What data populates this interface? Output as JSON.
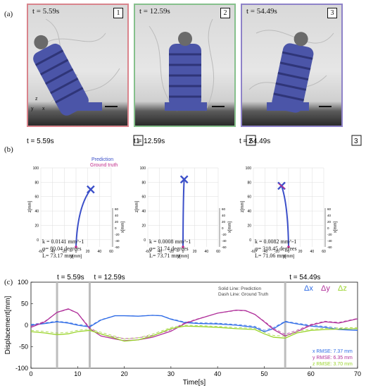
{
  "panel_labels": {
    "a": "(a)",
    "b": "(b)",
    "c": "(c)"
  },
  "photos": [
    {
      "time": "t = 5.59s",
      "number": "1",
      "border_color": "#d9848c"
    },
    {
      "time": "t = 12.59s",
      "number": "2",
      "border_color": "#86c08c"
    },
    {
      "time": "t = 54.49s",
      "number": "3",
      "border_color": "#8e82c8"
    }
  ],
  "photo_axes": {
    "z": "z",
    "x": "x",
    "y": "y"
  },
  "shapes": {
    "legend": {
      "prediction": "Prediction",
      "ground_truth": "Ground truth",
      "prediction_color": "#3b4fc9",
      "ground_truth_color": "#c02c8a"
    },
    "axis_labels": {
      "z": "z[mm]",
      "y": "y[mm]",
      "x": "x[mm]"
    },
    "panels": [
      {
        "time": "t = 5.59s",
        "number": "1",
        "k": "k = 0.0141 mm^-1",
        "phi": "φ= 80.04 degrees",
        "L": "L= 73.17 mm"
      },
      {
        "time": "t = 12.59s",
        "number": "2",
        "k": "k = 0.0008 mm^-1",
        "phi": "φ= 31.74 degrees",
        "L": "L= 73.71 mm"
      },
      {
        "time": "t = 54.49s",
        "number": "3",
        "k": "k = 0.0082 mm^-1",
        "phi": "φ= 318.45 degrees",
        "L": "L= 71.06 mm"
      }
    ],
    "y_ticks": [
      "-60",
      "-40",
      "-20",
      "0",
      "20",
      "40",
      "60"
    ],
    "z_ticks": [
      "100",
      "80",
      "60",
      "40",
      "20",
      "0"
    ],
    "x_ticks": [
      "-60",
      "-40",
      "-20",
      "0",
      "20",
      "40",
      "60"
    ]
  },
  "chart_data": {
    "type": "line",
    "xlabel": "Time[s]",
    "ylabel": "Displacement[mm]",
    "xlim": [
      0,
      70
    ],
    "ylim": [
      -100,
      100
    ],
    "x_ticks": [
      "0",
      "10",
      "20",
      "30",
      "40",
      "50",
      "60",
      "70"
    ],
    "y_ticks": [
      "100",
      "50",
      "0",
      "-50",
      "-100"
    ],
    "markers": [
      {
        "t": 5.59,
        "label": "t = 5.59s"
      },
      {
        "t": 12.59,
        "label": "t = 12.59s"
      },
      {
        "t": 54.49,
        "label": "t = 54.49s"
      }
    ],
    "note_solid": "Solid Line: Prediction",
    "note_dash": "Dash Line: Ground Truth",
    "legend": [
      {
        "name": "Δx",
        "color": "#2e6be6"
      },
      {
        "name": "Δy",
        "color": "#b0309a"
      },
      {
        "name": "Δz",
        "color": "#9ad42a"
      }
    ],
    "rmse": [
      {
        "text": "x RMSE: 7.37 mm",
        "color": "#2e6be6"
      },
      {
        "text": "y RMSE: 6.35 mm",
        "color": "#b0309a"
      },
      {
        "text": "z RMSE: 3.70 mm",
        "color": "#9ad42a"
      }
    ],
    "series": [
      {
        "name": "Δx",
        "color": "#2e6be6",
        "x": [
          0,
          3,
          5.59,
          8,
          10,
          12.59,
          15,
          18,
          20,
          23,
          26,
          28,
          30,
          33,
          36,
          40,
          44,
          48,
          50,
          52,
          54.49,
          57,
          60,
          63,
          66,
          70
        ],
        "y": [
          0,
          4,
          8,
          5,
          0,
          -4,
          12,
          22,
          22,
          21,
          23,
          22,
          14,
          6,
          4,
          3,
          0,
          -5,
          -15,
          -8,
          8,
          3,
          -2,
          -5,
          -10,
          -12
        ]
      },
      {
        "name": "Δy",
        "color": "#b0309a",
        "x": [
          0,
          3,
          5.59,
          8,
          10,
          12.59,
          15,
          18,
          20,
          23,
          26,
          30,
          33,
          36,
          40,
          44,
          46,
          48,
          50,
          52,
          54.49,
          57,
          60,
          63,
          66,
          70
        ],
        "y": [
          -5,
          8,
          30,
          38,
          28,
          -8,
          -25,
          -32,
          -36,
          -34,
          -28,
          -14,
          4,
          15,
          28,
          35,
          34,
          25,
          8,
          -10,
          -25,
          -15,
          0,
          8,
          5,
          15
        ]
      },
      {
        "name": "Δz",
        "color": "#9ad42a",
        "x": [
          0,
          3,
          5.59,
          8,
          10,
          12.59,
          15,
          18,
          20,
          23,
          26,
          30,
          33,
          36,
          40,
          44,
          48,
          50,
          52,
          54.49,
          57,
          60,
          63,
          66,
          70
        ],
        "y": [
          -15,
          -18,
          -22,
          -20,
          -15,
          -12,
          -20,
          -30,
          -37,
          -34,
          -25,
          -8,
          -2,
          -3,
          -5,
          -8,
          -10,
          -20,
          -28,
          -30,
          -18,
          -12,
          -10,
          -9,
          -8
        ]
      }
    ]
  }
}
